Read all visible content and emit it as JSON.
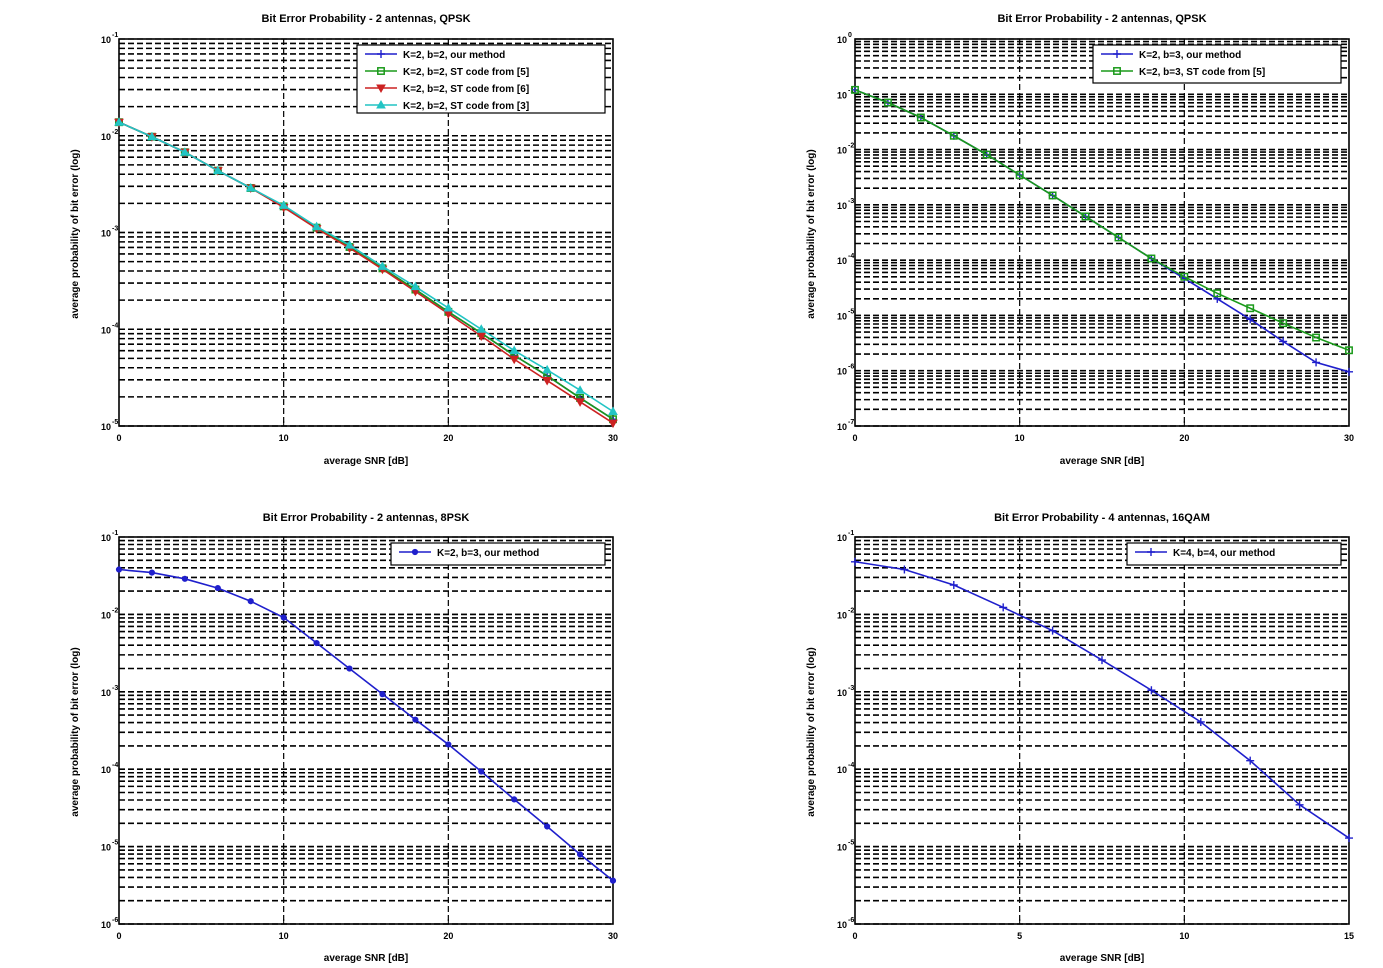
{
  "chart_data": [
    {
      "type": "line",
      "title": "Bit Error Probability - 2 antennas, QPSK",
      "xlabel": "average SNR [dB]",
      "ylabel": "average probability of bit error (log)",
      "xlim": [
        0,
        30
      ],
      "ylim_log10": [
        -5,
        -1
      ],
      "y_scale": "log",
      "grid": true,
      "legend_position": "top-right",
      "x_ticks": [
        0,
        10,
        20,
        30
      ],
      "y_ticks_exp": [
        -5,
        -4,
        -3,
        -2,
        -1
      ],
      "x": [
        0,
        2,
        4,
        6,
        8,
        10,
        12,
        14,
        16,
        18,
        20,
        22,
        24,
        26,
        28,
        30
      ],
      "series": [
        {
          "name": "K=2, b=2, our method",
          "color": "#1f1fcc",
          "marker": "plus",
          "log10_y": [
            -1.86,
            -2.01,
            -2.17,
            -2.36,
            -2.54,
            -2.73,
            -2.95,
            -3.15,
            -3.37,
            -3.59,
            -3.82,
            -4.04,
            -4.27,
            -4.48,
            -4.71,
            -4.93
          ]
        },
        {
          "name": "K=2, b=2, ST code from [5]",
          "color": "#1a9a1a",
          "marker": "square",
          "log10_y": [
            -1.86,
            -2.01,
            -2.17,
            -2.36,
            -2.54,
            -2.73,
            -2.95,
            -3.15,
            -3.37,
            -3.59,
            -3.82,
            -4.04,
            -4.27,
            -4.48,
            -4.71,
            -4.93
          ]
        },
        {
          "name": "K=2, b=2, ST code from [6]",
          "color": "#cc2222",
          "marker": "triangle-down",
          "log10_y": [
            -1.86,
            -2.01,
            -2.17,
            -2.36,
            -2.54,
            -2.74,
            -2.96,
            -3.16,
            -3.38,
            -3.61,
            -3.84,
            -4.07,
            -4.31,
            -4.53,
            -4.75,
            -4.97
          ]
        },
        {
          "name": "K=2, b=2, ST code from [3]",
          "color": "#22c4c4",
          "marker": "triangle-up",
          "log10_y": [
            -1.86,
            -2.01,
            -2.17,
            -2.36,
            -2.54,
            -2.72,
            -2.94,
            -3.13,
            -3.35,
            -3.56,
            -3.78,
            -4.0,
            -4.22,
            -4.42,
            -4.63,
            -4.85
          ]
        }
      ]
    },
    {
      "type": "line",
      "title": "Bit Error Probability - 2 antennas, QPSK",
      "xlabel": "average SNR [dB]",
      "ylabel": "average probability of bit error (log)",
      "xlim": [
        0,
        30
      ],
      "ylim_log10": [
        -7,
        0
      ],
      "y_scale": "log",
      "grid": true,
      "legend_position": "top-right",
      "x_ticks": [
        0,
        10,
        20,
        30
      ],
      "y_ticks_exp": [
        -7,
        -6,
        -5,
        -4,
        -3,
        -2,
        -1,
        0
      ],
      "x": [
        0,
        2,
        4,
        6,
        8,
        10,
        12,
        14,
        16,
        18,
        20,
        22,
        24,
        26,
        28,
        30
      ],
      "series": [
        {
          "name": "K=2, b=3, our method",
          "color": "#1f1fcc",
          "marker": "plus",
          "log10_y": [
            -0.92,
            -1.15,
            -1.42,
            -1.75,
            -2.09,
            -2.46,
            -2.83,
            -3.21,
            -3.59,
            -3.97,
            -4.33,
            -4.7,
            -5.07,
            -5.47,
            -5.85,
            -6.02
          ]
        },
        {
          "name": "K=2, b=3, ST code from [5]",
          "color": "#1a9a1a",
          "marker": "square",
          "log10_y": [
            -0.92,
            -1.15,
            -1.42,
            -1.75,
            -2.09,
            -2.46,
            -2.83,
            -3.21,
            -3.59,
            -3.97,
            -4.3,
            -4.6,
            -4.87,
            -5.14,
            -5.4,
            -5.63
          ]
        }
      ]
    },
    {
      "type": "line",
      "title": "Bit Error Probability - 2 antennas, 8PSK",
      "xlabel": "average SNR [dB]",
      "ylabel": "average probability of bit error (log)",
      "xlim": [
        0,
        30
      ],
      "ylim_log10": [
        -6,
        -1
      ],
      "y_scale": "log",
      "grid": true,
      "legend_position": "top-right",
      "x_ticks": [
        0,
        10,
        20,
        30
      ],
      "y_ticks_exp": [
        -6,
        -5,
        -4,
        -3,
        -2,
        -1
      ],
      "x": [
        0,
        2,
        4,
        6,
        8,
        10,
        12,
        14,
        16,
        18,
        20,
        22,
        24,
        26,
        28,
        30
      ],
      "series": [
        {
          "name": "K=2, b=3, our method",
          "color": "#1f1fcc",
          "marker": "circle",
          "log10_y": [
            -1.42,
            -1.46,
            -1.54,
            -1.66,
            -1.83,
            -2.04,
            -2.37,
            -2.7,
            -3.03,
            -3.36,
            -3.68,
            -4.03,
            -4.39,
            -4.74,
            -5.1,
            -5.44
          ]
        }
      ]
    },
    {
      "type": "line",
      "title": "Bit Error Probability - 4 antennas, 16QAM",
      "xlabel": "average SNR [dB]",
      "ylabel": "average probability of bit error (log)",
      "xlim": [
        0,
        15
      ],
      "ylim_log10": [
        -6,
        -1
      ],
      "y_scale": "log",
      "grid": true,
      "legend_position": "top-right",
      "x_ticks": [
        0,
        5,
        10,
        15
      ],
      "y_ticks_exp": [
        -6,
        -5,
        -4,
        -3,
        -2,
        -1
      ],
      "x": [
        0,
        1.5,
        3,
        4.5,
        6,
        7.5,
        9,
        10.5,
        12,
        13.5,
        15
      ],
      "series": [
        {
          "name": "K=4, b=4, our method",
          "color": "#1f1fcc",
          "marker": "plus",
          "log10_y": [
            -1.32,
            -1.42,
            -1.62,
            -1.91,
            -2.21,
            -2.59,
            -2.98,
            -3.39,
            -3.89,
            -4.46,
            -4.89
          ]
        }
      ]
    }
  ]
}
